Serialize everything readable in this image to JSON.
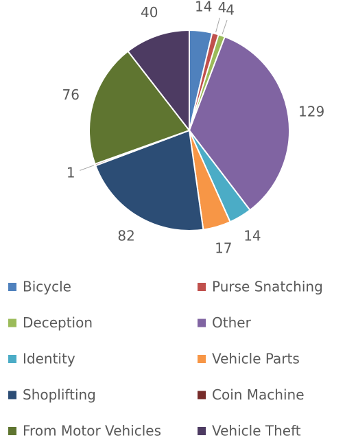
{
  "chart_data": {
    "type": "pie",
    "categories": [
      "Bicycle",
      "Purse Snatching",
      "Deception",
      "Other",
      "Identity",
      "Vehicle Parts",
      "Shoplifting",
      "Coin Machine",
      "From Motor Vehicles",
      "Vehicle Theft"
    ],
    "values": [
      14,
      4,
      4,
      129,
      14,
      17,
      82,
      1,
      76,
      40
    ],
    "colors": [
      "#4f81bd",
      "#c0504d",
      "#9bbb59",
      "#8064a2",
      "#4bacc6",
      "#f79646",
      "#2c4d75",
      "#772c2a",
      "#5f7530",
      "#4d3b62"
    ],
    "legend": "bottom"
  }
}
